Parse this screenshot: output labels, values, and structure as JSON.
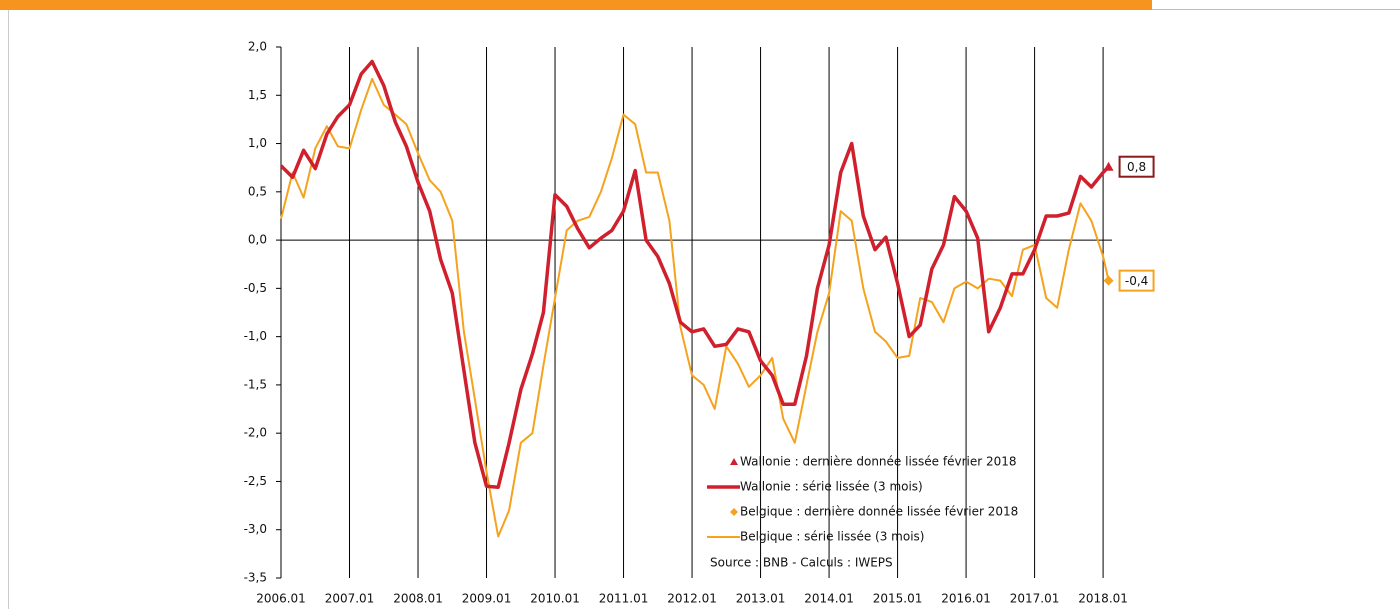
{
  "chart_data": {
    "type": "line",
    "x": [
      2006,
      2006.17,
      2006.33,
      2006.5,
      2006.67,
      2006.83,
      2007,
      2007.17,
      2007.33,
      2007.5,
      2007.67,
      2007.83,
      2008,
      2008.17,
      2008.33,
      2008.5,
      2008.67,
      2008.83,
      2009,
      2009.17,
      2009.33,
      2009.5,
      2009.67,
      2009.83,
      2010,
      2010.17,
      2010.33,
      2010.5,
      2010.67,
      2010.83,
      2011,
      2011.17,
      2011.33,
      2011.5,
      2011.67,
      2011.83,
      2012,
      2012.17,
      2012.33,
      2012.5,
      2012.67,
      2012.83,
      2013,
      2013.17,
      2013.33,
      2013.5,
      2013.67,
      2013.83,
      2014,
      2014.17,
      2014.33,
      2014.5,
      2014.67,
      2014.83,
      2015,
      2015.17,
      2015.33,
      2015.5,
      2015.67,
      2015.83,
      2016,
      2016.17,
      2016.33,
      2016.5,
      2016.67,
      2016.83,
      2017,
      2017.17,
      2017.33,
      2017.5,
      2017.67,
      2017.83,
      2018,
      2018.08
    ],
    "series": [
      {
        "name": "Wallonie : dernière donnée lissée février 2018",
        "color": "#d0202e",
        "marker": "triangle",
        "x": [
          2018.08
        ],
        "values": [
          0.76
        ],
        "value_labels": [
          "0,8"
        ]
      },
      {
        "name": "Wallonie : série lissée (3 mois)",
        "color": "#d0202e",
        "values": [
          0.77,
          0.65,
          0.93,
          0.74,
          1.1,
          1.28,
          1.4,
          1.72,
          1.85,
          1.6,
          1.22,
          0.97,
          0.6,
          0.3,
          -0.2,
          -0.55,
          -1.35,
          -2.1,
          -2.55,
          -2.56,
          -2.1,
          -1.55,
          -1.18,
          -0.75,
          0.47,
          0.35,
          0.12,
          -0.08,
          0.02,
          0.1,
          0.3,
          0.72,
          0.0,
          -0.17,
          -0.45,
          -0.85,
          -0.95,
          -0.92,
          -1.1,
          -1.08,
          -0.92,
          -0.95,
          -1.25,
          -1.4,
          -1.7,
          -1.7,
          -1.2,
          -0.5,
          -0.05,
          0.7,
          1.0,
          0.25,
          -0.1,
          0.03,
          -0.45,
          -1.0,
          -0.88,
          -0.3,
          -0.05,
          0.45,
          0.3,
          0.02,
          -0.95,
          -0.7,
          -0.35,
          -0.35,
          -0.1,
          0.25,
          0.25,
          0.28,
          0.66,
          0.55,
          0.7,
          0.76
        ]
      },
      {
        "name": "Belgique : dernière donnée lissée février 2018",
        "color": "#f5a21e",
        "marker": "diamond",
        "x": [
          2018.08
        ],
        "values": [
          -0.42
        ],
        "value_labels": [
          "-0,4"
        ]
      },
      {
        "name": "Belgique : série lissée (3 mois)",
        "color": "#f5a21e",
        "values": [
          0.22,
          0.7,
          0.44,
          0.95,
          1.18,
          0.97,
          0.95,
          1.35,
          1.67,
          1.4,
          1.3,
          1.2,
          0.9,
          0.62,
          0.5,
          0.2,
          -0.95,
          -1.65,
          -2.4,
          -3.07,
          -2.8,
          -2.1,
          -2.0,
          -1.3,
          -0.6,
          0.1,
          0.2,
          0.24,
          0.5,
          0.85,
          1.3,
          1.2,
          0.7,
          0.7,
          0.2,
          -0.9,
          -1.4,
          -1.5,
          -1.75,
          -1.1,
          -1.28,
          -1.52,
          -1.4,
          -1.22,
          -1.85,
          -2.1,
          -1.5,
          -0.95,
          -0.55,
          0.3,
          0.2,
          -0.5,
          -0.95,
          -1.05,
          -1.22,
          -1.2,
          -0.6,
          -0.64,
          -0.85,
          -0.5,
          -0.43,
          -0.5,
          -0.4,
          -0.42,
          -0.58,
          -0.1,
          -0.05,
          -0.6,
          -0.7,
          -0.1,
          0.38,
          0.2,
          -0.17,
          -0.42
        ]
      }
    ],
    "xlim": [
      2006,
      2018.13
    ],
    "xticks": [
      {
        "value": 2006,
        "label": "2006.01"
      },
      {
        "value": 2007,
        "label": "2007.01"
      },
      {
        "value": 2008,
        "label": "2008.01"
      },
      {
        "value": 2009,
        "label": "2009.01"
      },
      {
        "value": 2010,
        "label": "2010.01"
      },
      {
        "value": 2011,
        "label": "2011.01"
      },
      {
        "value": 2012,
        "label": "2012.01"
      },
      {
        "value": 2013,
        "label": "2013.01"
      },
      {
        "value": 2014,
        "label": "2014.01"
      },
      {
        "value": 2015,
        "label": "2015.01"
      },
      {
        "value": 2016,
        "label": "2016.01"
      },
      {
        "value": 2017,
        "label": "2017.01"
      },
      {
        "value": 2018,
        "label": "2018.01"
      }
    ],
    "ylim": [
      -3.5,
      2
    ],
    "yticks": [
      {
        "value": 2,
        "label": "2,0"
      },
      {
        "value": 1.5,
        "label": "1,5"
      },
      {
        "value": 1,
        "label": "1,0"
      },
      {
        "value": 0.5,
        "label": "0,5"
      },
      {
        "value": 0,
        "label": "0,0"
      },
      {
        "value": -0.5,
        "label": "-0,5"
      },
      {
        "value": -1,
        "label": "-1,0"
      },
      {
        "value": -1.5,
        "label": "-1,5"
      },
      {
        "value": -2,
        "label": "-2,0"
      },
      {
        "value": -2.5,
        "label": "-2,5"
      },
      {
        "value": -3,
        "label": "-3,0"
      },
      {
        "value": -3.5,
        "label": "-3,5"
      }
    ],
    "annotation": "Source : BNB - Calculs : IWEPS"
  }
}
